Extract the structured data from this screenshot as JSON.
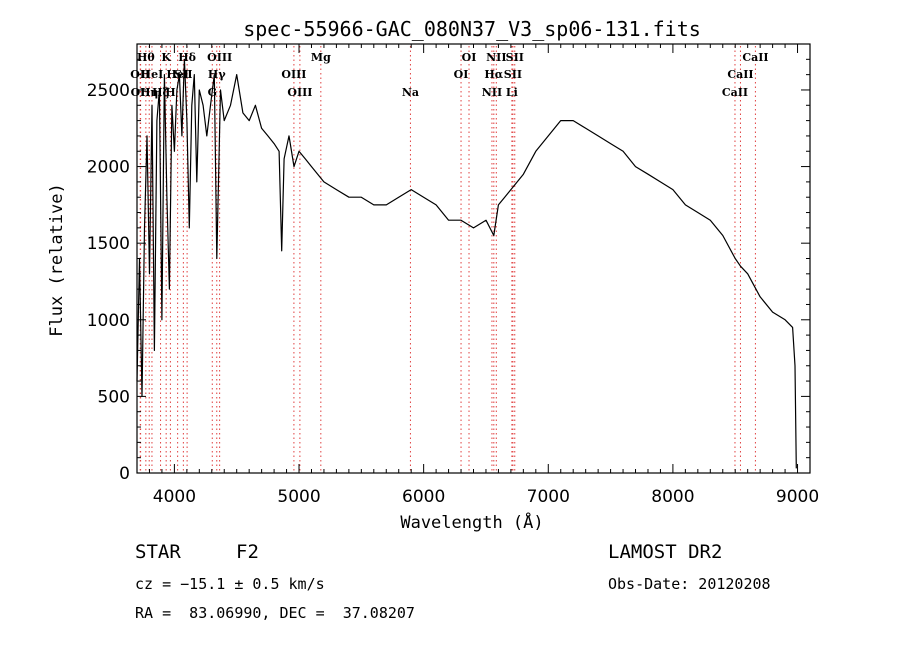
{
  "chart_data": {
    "type": "line",
    "title": "spec-55966-GAC_080N37_V3_sp06-131.fits",
    "xlabel": "Wavelength (Å)",
    "ylabel": "Flux (relative)",
    "xlim": [
      3700,
      9100
    ],
    "ylim": [
      0,
      2800
    ],
    "x_ticks": [
      4000,
      5000,
      6000,
      7000,
      8000,
      9000
    ],
    "y_ticks": [
      0,
      500,
      1000,
      1500,
      2000,
      2500
    ],
    "grid": false,
    "series": [
      {
        "x": [
          3700,
          3720,
          3740,
          3760,
          3780,
          3800,
          3820,
          3840,
          3860,
          3880,
          3900,
          3920,
          3940,
          3960,
          3980,
          4000,
          4020,
          4040,
          4060,
          4080,
          4100,
          4120,
          4140,
          4160,
          4180,
          4200,
          4230,
          4260,
          4290,
          4320,
          4340,
          4370,
          4400,
          4450,
          4500,
          4550,
          4600,
          4650,
          4700,
          4750,
          4800,
          4840,
          4861,
          4880,
          4920,
          4960,
          5000,
          5050,
          5100,
          5150,
          5200,
          5300,
          5400,
          5500,
          5600,
          5700,
          5800,
          5900,
          6000,
          6100,
          6200,
          6300,
          6400,
          6500,
          6563,
          6600,
          6650,
          6700,
          6800,
          6900,
          7000,
          7100,
          7200,
          7300,
          7400,
          7500,
          7600,
          7700,
          7800,
          7900,
          8000,
          8100,
          8200,
          8300,
          8400,
          8500,
          8542,
          8600,
          8700,
          8800,
          8900,
          8960,
          8980,
          8990
        ],
        "y": [
          600,
          1400,
          500,
          1600,
          2200,
          1300,
          2400,
          800,
          2300,
          2500,
          1000,
          2600,
          1800,
          1200,
          2400,
          2100,
          2500,
          2600,
          2200,
          2700,
          2300,
          1600,
          2400,
          2600,
          1900,
          2500,
          2400,
          2200,
          2400,
          2600,
          1400,
          2500,
          2300,
          2400,
          2600,
          2350,
          2300,
          2400,
          2250,
          2200,
          2150,
          2100,
          1450,
          2050,
          2200,
          2000,
          2100,
          2050,
          2000,
          1950,
          1900,
          1850,
          1800,
          1800,
          1750,
          1750,
          1800,
          1850,
          1800,
          1750,
          1650,
          1650,
          1600,
          1650,
          1550,
          1750,
          1800,
          1850,
          1950,
          2100,
          2200,
          2300,
          2300,
          2250,
          2200,
          2150,
          2100,
          2000,
          1950,
          1900,
          1850,
          1750,
          1700,
          1650,
          1550,
          1400,
          1350,
          1300,
          1150,
          1050,
          1000,
          950,
          700,
          30
        ]
      }
    ],
    "line_markers": [
      {
        "wl": 3726,
        "label": "OII",
        "row": 1
      },
      {
        "wl": 3729,
        "label": "OII",
        "row": 2
      },
      {
        "wl": 3771,
        "label": "Hθ",
        "row": 0
      },
      {
        "wl": 3798,
        "label": "Hη",
        "row": 2
      },
      {
        "wl": 3820,
        "label": "HeI",
        "row": 1
      },
      {
        "wl": 3889,
        "label": "Hζ",
        "row": 2
      },
      {
        "wl": 3934,
        "label": "K",
        "row": 0
      },
      {
        "wl": 3968,
        "label": "H",
        "row": 2
      },
      {
        "wl": 4026,
        "label": "HeI",
        "row": 1
      },
      {
        "wl": 4072,
        "label": "SII",
        "row": 1
      },
      {
        "wl": 4102,
        "label": "Hδ",
        "row": 0
      },
      {
        "wl": 4304,
        "label": "G",
        "row": 2
      },
      {
        "wl": 4340,
        "label": "Hγ",
        "row": 1
      },
      {
        "wl": 4363,
        "label": "OIII",
        "row": 0
      },
      {
        "wl": 4959,
        "label": "OIII",
        "row": 1
      },
      {
        "wl": 5007,
        "label": "OIII",
        "row": 2
      },
      {
        "wl": 5175,
        "label": "Mg",
        "row": 0
      },
      {
        "wl": 5894,
        "label": "Na",
        "row": 2
      },
      {
        "wl": 6300,
        "label": "OI",
        "row": 1
      },
      {
        "wl": 6364,
        "label": "OI",
        "row": 0
      },
      {
        "wl": 6548,
        "label": "NII",
        "row": 2
      },
      {
        "wl": 6563,
        "label": "Hα",
        "row": 1
      },
      {
        "wl": 6583,
        "label": "NII",
        "row": 0
      },
      {
        "wl": 6708,
        "label": "Li",
        "row": 2
      },
      {
        "wl": 6716,
        "label": "SII",
        "row": 1
      },
      {
        "wl": 6731,
        "label": "SII",
        "row": 0
      },
      {
        "wl": 8498,
        "label": "CaII",
        "row": 2
      },
      {
        "wl": 8542,
        "label": "CaII",
        "row": 1
      },
      {
        "wl": 8662,
        "label": "CaII",
        "row": 0
      }
    ]
  },
  "info": {
    "object_class": "STAR",
    "subclass": "F2",
    "cz": "cz = −15.1 ± 0.5 km/s",
    "coords": "RA =  83.06990, DEC =  37.08207",
    "survey": "LAMOST DR2",
    "obs_date": "Obs-Date: 20120208"
  },
  "colors": {
    "spectrum": "#000000",
    "markers": "#e04040"
  }
}
